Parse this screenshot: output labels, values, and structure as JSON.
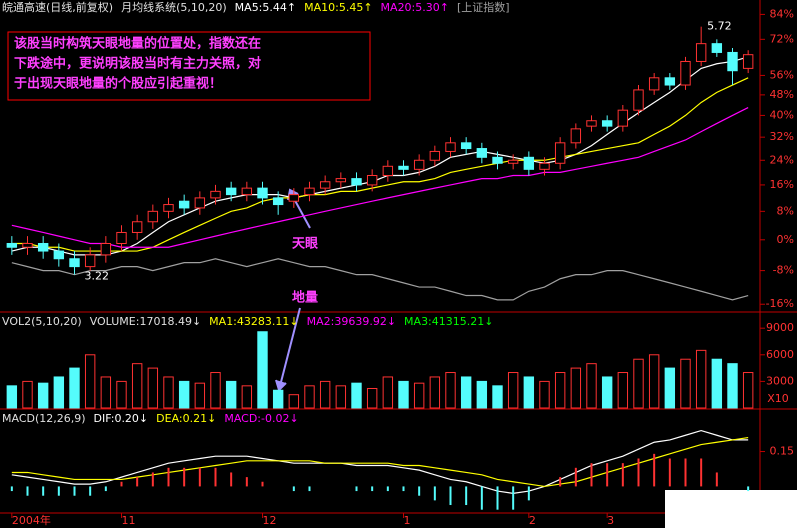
{
  "chart_data": [
    {
      "type": "candlestick",
      "title": "皖通高速(日线,前复权)",
      "subtitle": "月均线系统(5,10,20)",
      "log_scale": true,
      "ylim": [
        -17.3,
        84.2
      ],
      "yticks": [
        {
          "value": 84,
          "label": "84%"
        },
        {
          "value": 72,
          "label": "72%"
        },
        {
          "value": 56,
          "label": "56%"
        },
        {
          "value": 48,
          "label": "48%"
        },
        {
          "value": 40,
          "label": "40%"
        },
        {
          "value": 32,
          "label": "32%"
        },
        {
          "value": 24,
          "label": "24%"
        },
        {
          "value": 16,
          "label": "16%"
        },
        {
          "value": 8,
          "label": "8%"
        },
        {
          "value": 0,
          "label": "0%"
        },
        {
          "value": -8,
          "label": "-8%"
        },
        {
          "value": -16,
          "label": "-16%"
        }
      ],
      "up_color": "#ff3232",
      "down_color": "#54fcfc",
      "open": [
        -1,
        -2,
        -1,
        -3,
        -5,
        -7,
        -4,
        -1,
        2,
        5,
        8,
        11,
        9,
        12,
        15,
        13,
        15,
        12,
        11,
        13,
        15,
        17,
        18,
        16,
        19,
        22,
        21,
        24,
        27,
        30,
        28,
        25,
        23,
        25,
        21,
        23,
        30,
        36,
        38,
        36,
        42,
        50,
        55,
        52,
        62,
        70,
        66,
        59
      ],
      "high": [
        1,
        1,
        1,
        -1,
        -3,
        -2,
        1,
        4,
        7,
        10,
        12,
        13,
        14,
        16,
        17,
        17,
        17,
        14,
        15,
        17,
        19,
        20,
        20,
        21,
        24,
        24,
        26,
        29,
        32,
        32,
        30,
        27,
        26,
        27,
        25,
        32,
        37,
        40,
        40,
        44,
        52,
        57,
        57,
        64,
        78,
        72,
        68,
        67
      ],
      "low": [
        -4,
        -4,
        -5,
        -7,
        -9,
        -8,
        -6,
        -3,
        0,
        3,
        6,
        7,
        7,
        10,
        11,
        11,
        10,
        7,
        9,
        11,
        13,
        15,
        14,
        14,
        17,
        19,
        19,
        22,
        25,
        26,
        23,
        21,
        21,
        19,
        19,
        21,
        28,
        34,
        34,
        34,
        40,
        48,
        50,
        50,
        60,
        64,
        52,
        57
      ],
      "close": [
        -2,
        -1,
        -3,
        -5,
        -7,
        -4,
        -1,
        2,
        5,
        8,
        10,
        9,
        12,
        14,
        13,
        15,
        12,
        10,
        13,
        15,
        17,
        18,
        16,
        19,
        22,
        21,
        24,
        27,
        30,
        28,
        25,
        23,
        24,
        21,
        23,
        30,
        35,
        38,
        36,
        42,
        50,
        55,
        52,
        62,
        70,
        66,
        58,
        65
      ],
      "series": [
        {
          "name": "MA5:5.44↑",
          "color": "#ffffff",
          "values": [
            -3,
            -2,
            -2,
            -3,
            -4,
            -4,
            -4,
            -3,
            -1,
            2,
            5,
            7,
            9,
            11,
            12,
            13,
            13,
            13,
            12,
            13,
            14,
            15,
            16,
            17,
            19,
            19,
            20,
            22,
            25,
            26,
            27,
            26,
            25,
            24,
            23,
            24,
            26,
            29,
            33,
            37,
            41,
            45,
            49,
            54,
            59,
            61,
            62,
            64
          ]
        },
        {
          "name": "MA10:5.45↑",
          "color": "#ffff00",
          "values": [
            -1,
            -1,
            -2,
            -2,
            -3,
            -3,
            -3,
            -3,
            -3,
            -2,
            0,
            2,
            4,
            6,
            8,
            9,
            11,
            12,
            12,
            13,
            13,
            14,
            14,
            15,
            16,
            17,
            17,
            18,
            20,
            21,
            22,
            23,
            24,
            24,
            24,
            25,
            26,
            27,
            28,
            29,
            30,
            33,
            36,
            40,
            45,
            49,
            52,
            55
          ]
        },
        {
          "name": "MA20:5.30↑",
          "color": "#ff00ff",
          "values": [
            4,
            3,
            2,
            1,
            0,
            -1,
            -1,
            -2,
            -2,
            -2,
            -2,
            -1,
            0,
            1,
            2,
            3,
            4,
            5,
            6,
            7,
            8,
            9,
            10,
            11,
            12,
            13,
            14,
            15,
            16,
            17,
            18,
            18,
            19,
            19,
            20,
            20,
            21,
            22,
            23,
            24,
            25,
            27,
            29,
            31,
            34,
            37,
            40,
            43
          ]
        },
        {
          "name": "[上证指数]",
          "color": "#a0a0a0",
          "values": [
            -6,
            -7,
            -8,
            -8,
            -9,
            -8,
            -8,
            -7,
            -7,
            -8,
            -7,
            -6,
            -6,
            -5,
            -6,
            -7,
            -6,
            -5,
            -6,
            -7,
            -7,
            -8,
            -9,
            -9,
            -10,
            -11,
            -12,
            -12,
            -13,
            -14,
            -14,
            -15,
            -15,
            -13,
            -12,
            -10,
            -9,
            -9,
            -8,
            -8,
            -9,
            -10,
            -11,
            -12,
            -13,
            -14,
            -15,
            -14
          ]
        }
      ],
      "annotations": {
        "high_label": "5.72",
        "low_label": "3.22",
        "eye": "天眼",
        "note": [
          "该股当时构筑天眼地量的位置处，指数还在",
          "下跌途中，更说明该股当时有主力关照，对",
          "于出现天眼地量的个股应引起重视！"
        ]
      }
    },
    {
      "type": "bar",
      "title": "VOL2(5,10,20)",
      "series_name": "VOLUME:17018.49↓",
      "indicators": [
        {
          "name": "MA1:43283.11↓",
          "color": "#ffff00"
        },
        {
          "name": "MA2:39639.92↓",
          "color": "#ff00ff"
        },
        {
          "name": "MA3:41315.21↓",
          "color": "#00ff00"
        }
      ],
      "ylim": [
        0,
        10600
      ],
      "yticks": [
        3000,
        6000,
        9000
      ],
      "unit_label": "X10",
      "annotation": "地量",
      "values": [
        2500,
        3000,
        2800,
        3500,
        4500,
        6000,
        3500,
        3000,
        5000,
        4500,
        3500,
        3000,
        2800,
        4000,
        3000,
        2500,
        8600,
        2000,
        1500,
        2500,
        3000,
        2500,
        2800,
        2200,
        3500,
        3000,
        2800,
        3500,
        4000,
        3500,
        3000,
        2500,
        4000,
        3500,
        3000,
        4000,
        4500,
        5000,
        3500,
        4000,
        5500,
        6000,
        4500,
        5500,
        6500,
        5500,
        5000,
        4000
      ]
    },
    {
      "type": "macd",
      "title": "MACD(12,26,9)",
      "ylim": [
        -0.11,
        0.32
      ],
      "yticks": [
        0.15
      ],
      "categories": [
        "2004年",
        null,
        null,
        null,
        null,
        null,
        null,
        "11",
        null,
        null,
        null,
        null,
        null,
        null,
        null,
        null,
        "12",
        null,
        null,
        null,
        null,
        null,
        null,
        null,
        null,
        "1",
        null,
        null,
        null,
        null,
        null,
        null,
        null,
        "2",
        null,
        null,
        null,
        null,
        "3",
        null,
        null,
        null,
        null,
        null,
        null,
        null,
        null,
        null
      ],
      "series": [
        {
          "name": "DIF:0.20↓",
          "color": "#ffffff",
          "values": [
            0.05,
            0.04,
            0.03,
            0.02,
            0.01,
            0.01,
            0.02,
            0.04,
            0.06,
            0.08,
            0.1,
            0.11,
            0.12,
            0.13,
            0.13,
            0.13,
            0.12,
            0.11,
            0.1,
            0.1,
            0.1,
            0.1,
            0.09,
            0.09,
            0.09,
            0.08,
            0.07,
            0.05,
            0.03,
            0.02,
            0.0,
            -0.02,
            -0.03,
            -0.02,
            0.0,
            0.03,
            0.06,
            0.09,
            0.11,
            0.13,
            0.16,
            0.19,
            0.2,
            0.22,
            0.24,
            0.22,
            0.2,
            0.2
          ]
        },
        {
          "name": "DEA:0.21↓",
          "color": "#ffff00",
          "values": [
            0.06,
            0.06,
            0.05,
            0.04,
            0.03,
            0.03,
            0.03,
            0.03,
            0.04,
            0.05,
            0.06,
            0.07,
            0.08,
            0.09,
            0.1,
            0.11,
            0.11,
            0.11,
            0.11,
            0.11,
            0.1,
            0.1,
            0.1,
            0.1,
            0.1,
            0.09,
            0.09,
            0.08,
            0.07,
            0.06,
            0.05,
            0.03,
            0.02,
            0.01,
            0.0,
            0.01,
            0.02,
            0.04,
            0.06,
            0.08,
            0.1,
            0.12,
            0.14,
            0.16,
            0.18,
            0.19,
            0.2,
            0.21
          ]
        },
        {
          "name": "MACD:-0.02↓",
          "color": "#ff00ff",
          "bars": true,
          "values": [
            -0.02,
            -0.04,
            -0.04,
            -0.04,
            -0.04,
            -0.04,
            -0.02,
            0.02,
            0.04,
            0.06,
            0.08,
            0.08,
            0.08,
            0.08,
            0.06,
            0.04,
            0.02,
            0,
            -0.02,
            -0.02,
            0,
            0,
            -0.02,
            -0.02,
            -0.02,
            -0.02,
            -0.04,
            -0.06,
            -0.08,
            -0.08,
            -0.1,
            -0.1,
            -0.1,
            -0.06,
            0,
            0.04,
            0.08,
            0.1,
            0.1,
            0.1,
            0.12,
            0.14,
            0.12,
            0.12,
            0.12,
            0.06,
            0,
            -0.02
          ]
        }
      ]
    }
  ]
}
